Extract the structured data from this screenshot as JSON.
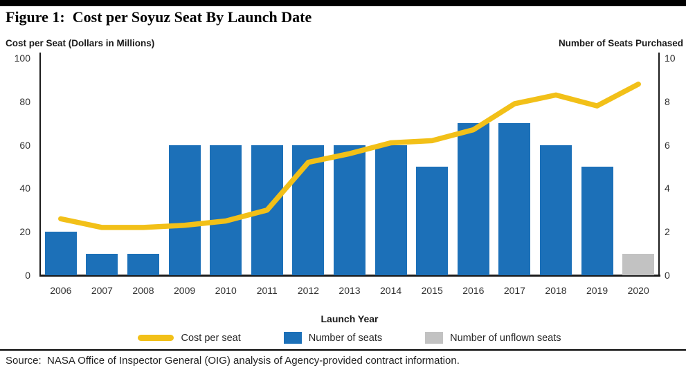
{
  "figure": {
    "title": "Figure 1:  Cost per Soyuz Seat By Launch Date",
    "source": "Source:  NASA Office of Inspector General (OIG) analysis of Agency-provided contract information."
  },
  "axes": {
    "left_title": "Cost per Seat (Dollars in Millions)",
    "right_title": "Number of Seats Purchased",
    "x_title": "Launch Year"
  },
  "legend": {
    "items": [
      {
        "label": "Cost per seat",
        "swatch": "line",
        "color": "#F2C018"
      },
      {
        "label": "Number of seats",
        "swatch": "square",
        "color": "#1C70B8"
      },
      {
        "label": "Number of unflown seats",
        "swatch": "square",
        "color": "#C2C2C2"
      }
    ]
  },
  "colors": {
    "bar_blue": "#1C70B8",
    "bar_gray": "#C2C2C2",
    "line_yellow": "#F2C018",
    "axis_black": "#1a1a1a"
  },
  "chart_data": {
    "type": "bar",
    "subtype": "bar-line-combo",
    "title": "Cost per Soyuz Seat By Launch Date",
    "xlabel": "Launch Year",
    "ylabel_left": "Cost per Seat (Dollars in Millions)",
    "ylabel_right": "Number of Seats Purchased",
    "categories": [
      "2006",
      "2007",
      "2008",
      "2009",
      "2010",
      "2011",
      "2012",
      "2013",
      "2014",
      "2015",
      "2016",
      "2017",
      "2018",
      "2019",
      "2020"
    ],
    "series": [
      {
        "name": "Cost per seat",
        "type": "line",
        "axis": "left",
        "color": "#F2C018",
        "values": [
          26,
          22,
          22,
          23,
          25,
          30,
          52,
          56,
          61,
          62,
          67,
          79,
          83,
          78,
          88
        ]
      },
      {
        "name": "Number of seats",
        "type": "bar",
        "axis": "right",
        "color": "#1C70B8",
        "values": [
          2,
          1,
          1,
          6,
          6,
          6,
          6,
          6,
          6,
          5,
          7,
          7,
          6,
          5,
          0
        ]
      },
      {
        "name": "Number of unflown seats",
        "type": "bar",
        "axis": "right",
        "color": "#C2C2C2",
        "values": [
          0,
          0,
          0,
          0,
          0,
          0,
          0,
          0,
          0,
          0,
          0,
          0,
          0,
          0,
          1
        ]
      }
    ],
    "left_axis": {
      "min": 0,
      "max": 100,
      "ticks": [
        100,
        80,
        60,
        40,
        20,
        0
      ]
    },
    "right_axis": {
      "min": 0,
      "max": 10,
      "ticks": [
        10,
        8,
        6,
        4,
        2,
        0
      ]
    },
    "grid": false,
    "legend_position": "bottom"
  }
}
